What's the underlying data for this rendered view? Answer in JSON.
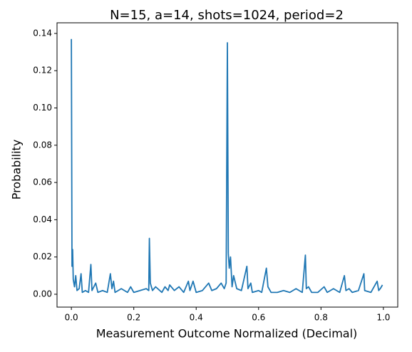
{
  "chart_data": {
    "type": "line",
    "title": "N=15, a=14, shots=1024, period=2",
    "xlabel": "Measurement Outcome Normalized (Decimal)",
    "ylabel": "Probability",
    "xlim": [
      -0.046,
      1.046
    ],
    "ylim": [
      -0.0069,
      0.1457
    ],
    "xticks": [
      {
        "value": 0,
        "label": "0.0"
      },
      {
        "value": 0.2,
        "label": "0.2"
      },
      {
        "value": 0.4,
        "label": "0.4"
      },
      {
        "value": 0.6,
        "label": "0.6"
      },
      {
        "value": 0.8,
        "label": "0.8"
      },
      {
        "value": 1,
        "label": "1.0"
      }
    ],
    "yticks": [
      {
        "value": 0,
        "label": "0.00"
      },
      {
        "value": 0.02,
        "label": "0.02"
      },
      {
        "value": 0.04,
        "label": "0.04"
      },
      {
        "value": 0.06,
        "label": "0.06"
      },
      {
        "value": 0.08,
        "label": "0.08"
      },
      {
        "value": 0.1,
        "label": "0.10"
      },
      {
        "value": 0.12,
        "label": "0.12"
      },
      {
        "value": 0.14,
        "label": "0.14"
      }
    ],
    "grid": false,
    "color": "#1f77b4",
    "x": [
      0.0,
      0.002,
      0.004,
      0.006,
      0.01,
      0.014,
      0.018,
      0.025,
      0.031,
      0.035,
      0.045,
      0.055,
      0.0625,
      0.066,
      0.078,
      0.085,
      0.1,
      0.115,
      0.125,
      0.13,
      0.135,
      0.14,
      0.16,
      0.18,
      0.19,
      0.2,
      0.22,
      0.24,
      0.248,
      0.25,
      0.253,
      0.26,
      0.27,
      0.29,
      0.3,
      0.31,
      0.315,
      0.33,
      0.345,
      0.36,
      0.375,
      0.38,
      0.39,
      0.4,
      0.42,
      0.44,
      0.45,
      0.465,
      0.48,
      0.49,
      0.496,
      0.5,
      0.503,
      0.506,
      0.51,
      0.515,
      0.52,
      0.53,
      0.545,
      0.5625,
      0.566,
      0.575,
      0.58,
      0.6,
      0.61,
      0.625,
      0.63,
      0.64,
      0.66,
      0.68,
      0.7,
      0.72,
      0.74,
      0.75,
      0.753,
      0.76,
      0.77,
      0.79,
      0.81,
      0.82,
      0.84,
      0.86,
      0.875,
      0.88,
      0.89,
      0.9,
      0.92,
      0.9375,
      0.94,
      0.96,
      0.98,
      0.985,
      0.99,
      0.997
    ],
    "values": [
      0.137,
      0.015,
      0.024,
      0.008,
      0.004,
      0.01,
      0.002,
      0.003,
      0.011,
      0.001,
      0.002,
      0.001,
      0.016,
      0.002,
      0.006,
      0.001,
      0.002,
      0.001,
      0.011,
      0.003,
      0.007,
      0.001,
      0.003,
      0.001,
      0.004,
      0.001,
      0.002,
      0.003,
      0.002,
      0.03,
      0.006,
      0.002,
      0.004,
      0.001,
      0.004,
      0.002,
      0.005,
      0.002,
      0.004,
      0.001,
      0.007,
      0.002,
      0.007,
      0.001,
      0.002,
      0.006,
      0.002,
      0.003,
      0.006,
      0.003,
      0.006,
      0.135,
      0.022,
      0.014,
      0.02,
      0.004,
      0.01,
      0.003,
      0.002,
      0.015,
      0.003,
      0.006,
      0.001,
      0.002,
      0.001,
      0.014,
      0.004,
      0.001,
      0.001,
      0.002,
      0.001,
      0.003,
      0.001,
      0.021,
      0.003,
      0.004,
      0.001,
      0.001,
      0.004,
      0.001,
      0.003,
      0.001,
      0.01,
      0.002,
      0.003,
      0.001,
      0.002,
      0.011,
      0.002,
      0.001,
      0.007,
      0.002,
      0.003,
      0.005
    ]
  }
}
